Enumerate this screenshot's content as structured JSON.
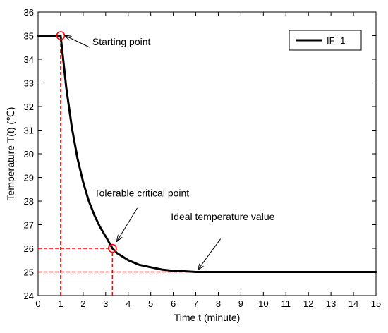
{
  "chart_data": {
    "type": "line",
    "title": "",
    "xlabel": "Time t (minute)",
    "ylabel": "Temperature T(t) (℃)",
    "xlim": [
      0,
      15
    ],
    "ylim": [
      24,
      36
    ],
    "xticks": [
      0,
      1,
      2,
      3,
      4,
      5,
      6,
      7,
      8,
      9,
      10,
      11,
      12,
      13,
      14,
      15
    ],
    "yticks": [
      24,
      25,
      26,
      27,
      28,
      29,
      30,
      31,
      32,
      33,
      34,
      35,
      36
    ],
    "grid": false,
    "legend_position": "top-right",
    "series": [
      {
        "name": "IF=1",
        "color": "#000000",
        "x": [
          0,
          1,
          1.25,
          1.5,
          1.75,
          2,
          2.25,
          2.5,
          2.75,
          3,
          3.3,
          3.5,
          4,
          4.5,
          5,
          5.5,
          6,
          6.5,
          7,
          8,
          9,
          10,
          11,
          12,
          13,
          14,
          15
        ],
        "y": [
          35,
          35,
          32.8,
          31.1,
          29.8,
          28.8,
          28.0,
          27.4,
          26.9,
          26.5,
          26.0,
          25.8,
          25.5,
          25.3,
          25.2,
          25.1,
          25.05,
          25.03,
          25.0,
          25.0,
          25.0,
          25.0,
          25.0,
          25.0,
          25.0,
          25.0,
          25.0
        ]
      }
    ],
    "markers": [
      {
        "name": "starting-point",
        "x": 1,
        "y": 35,
        "color": "#ff0000"
      },
      {
        "name": "tolerable-critical-point",
        "x": 3.3,
        "y": 26,
        "color": "#ff0000"
      }
    ],
    "reference_lines": [
      {
        "name": "starting-point-vertical",
        "from": [
          1,
          24
        ],
        "to": [
          1,
          35
        ],
        "color": "#ff0000"
      },
      {
        "name": "critical-point-vertical",
        "from": [
          3.3,
          24
        ],
        "to": [
          3.3,
          26
        ],
        "color": "#ff0000"
      },
      {
        "name": "critical-point-horizontal",
        "from": [
          0,
          26
        ],
        "to": [
          3.3,
          26
        ],
        "color": "#ff0000"
      },
      {
        "name": "ideal-value-horizontal",
        "from": [
          0,
          25
        ],
        "to": [
          8,
          25
        ],
        "color": "#ff0000"
      }
    ],
    "annotations": [
      {
        "name": "starting-point-annotation",
        "text": "Starting point",
        "text_x": 3.7,
        "text_y": 34.6,
        "arrow_from": [
          2.3,
          34.5
        ],
        "arrow_to": [
          1.2,
          35
        ]
      },
      {
        "name": "tolerable-critical-point-annotation",
        "text": "Tolerable critical point",
        "text_x": 4.6,
        "text_y": 28.2,
        "arrow_from": [
          4.4,
          27.7
        ],
        "arrow_to": [
          3.5,
          26.3
        ]
      },
      {
        "name": "ideal-temperature-annotation",
        "text": "Ideal temperature value",
        "text_x": 8.2,
        "text_y": 27.2,
        "arrow_from": [
          8.1,
          26.4
        ],
        "arrow_to": [
          7.1,
          25.1
        ]
      }
    ]
  }
}
